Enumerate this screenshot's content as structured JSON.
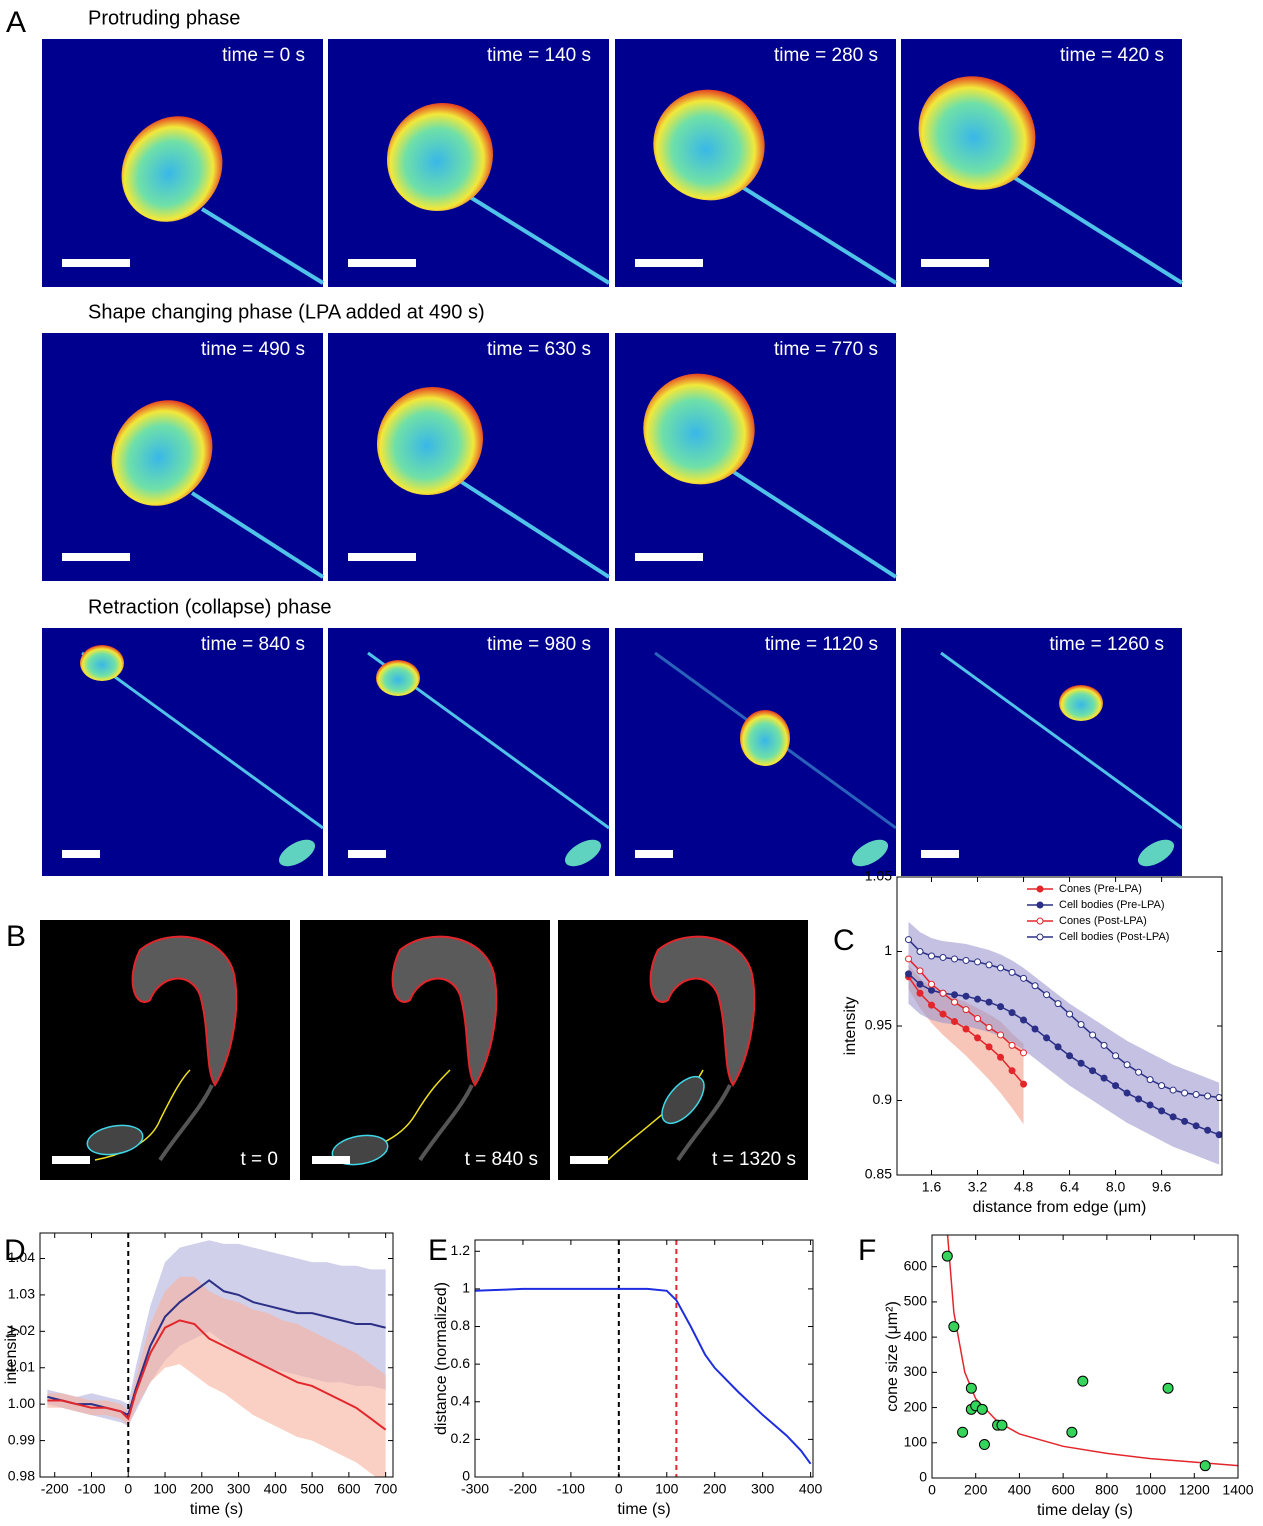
{
  "panel_a": {
    "label": "A",
    "rows": [
      {
        "title": "Protruding phase",
        "frames": [
          "time = 0 s",
          "time = 140 s",
          "time = 280 s",
          "time = 420 s"
        ]
      },
      {
        "title": "Shape changing phase (LPA added at 490 s)",
        "frames": [
          "time = 490 s",
          "time = 630 s",
          "time = 770 s"
        ]
      },
      {
        "title": "Retraction (collapse) phase",
        "frames": [
          "time = 840 s",
          "time = 980 s",
          "time = 1120 s",
          "time = 1260 s"
        ]
      }
    ]
  },
  "panel_b": {
    "label": "B",
    "frames": [
      "t = 0",
      "t = 840 s",
      "t = 1320 s"
    ]
  },
  "chart_data": [
    {
      "type": "line",
      "panel_label": "C",
      "xlabel": "distance from edge (μm)",
      "ylabel": "intensity",
      "xlim": [
        0.4,
        11.7
      ],
      "ylim": [
        0.85,
        1.05
      ],
      "xticks": [
        1.6,
        3.2,
        4.8,
        6.4,
        {
          "value": 8,
          "label": "8.0"
        },
        9.6
      ],
      "yticks": [
        0.85,
        0.9,
        0.95,
        1,
        1.05
      ],
      "legend": "upper right",
      "series": [
        {
          "name": "Cones (Pre-LPA)",
          "color": "#e3262b",
          "marker": "filled",
          "band_color": "#f4a08a",
          "x": [
            0.8,
            1.2,
            1.6,
            2,
            2.4,
            2.8,
            3.2,
            3.6,
            4,
            4.4,
            4.8
          ],
          "values": [
            0.983,
            0.972,
            0.964,
            0.958,
            0.953,
            0.948,
            0.942,
            0.936,
            0.929,
            0.92,
            0.911
          ],
          "lower": [
            0.975,
            0.962,
            0.952,
            0.944,
            0.937,
            0.93,
            0.922,
            0.914,
            0.905,
            0.895,
            0.884
          ],
          "upper": [
            0.991,
            0.982,
            0.976,
            0.972,
            0.969,
            0.966,
            0.962,
            0.958,
            0.953,
            0.945,
            0.938
          ]
        },
        {
          "name": "Cell bodies (Pre-LPA)",
          "color": "#2b2f86",
          "marker": "filled",
          "band_color": "#9c98cf",
          "x": [
            0.8,
            1.2,
            1.6,
            2,
            2.4,
            2.8,
            3.2,
            3.6,
            4,
            4.4,
            4.8,
            5.2,
            5.6,
            6,
            6.4,
            6.8,
            7.2,
            7.6,
            8,
            8.4,
            8.8,
            9.2,
            9.6,
            10,
            10.4,
            10.8,
            11.2,
            11.6
          ],
          "values": [
            0.985,
            0.978,
            0.974,
            0.972,
            0.971,
            0.97,
            0.968,
            0.966,
            0.963,
            0.959,
            0.954,
            0.948,
            0.942,
            0.936,
            0.93,
            0.925,
            0.92,
            0.915,
            0.91,
            0.905,
            0.901,
            0.897,
            0.893,
            0.889,
            0.886,
            0.883,
            0.88,
            0.877
          ],
          "lower": [
            0.965,
            0.958,
            0.954,
            0.952,
            0.951,
            0.95,
            0.948,
            0.946,
            0.943,
            0.939,
            0.934,
            0.928,
            0.922,
            0.916,
            0.91,
            0.905,
            0.9,
            0.895,
            0.89,
            0.885,
            0.881,
            0.877,
            0.873,
            0.869,
            0.866,
            0.863,
            0.86,
            0.857
          ],
          "upper": [
            1.02,
            1.013,
            1.009,
            1.007,
            1.006,
            1.005,
            1.003,
            1.001,
            0.998,
            0.994,
            0.989,
            0.983,
            0.977,
            0.971,
            0.965,
            0.96,
            0.955,
            0.95,
            0.945,
            0.94,
            0.936,
            0.932,
            0.928,
            0.924,
            0.921,
            0.918,
            0.915,
            0.912
          ]
        },
        {
          "name": "Cones (Post-LPA)",
          "color": "#e3262b",
          "marker": "open",
          "x": [
            0.8,
            1.2,
            1.6,
            2,
            2.4,
            2.8,
            3.2,
            3.6,
            4,
            4.4,
            4.8
          ],
          "values": [
            0.995,
            0.987,
            0.978,
            0.972,
            0.966,
            0.961,
            0.955,
            0.949,
            0.944,
            0.937,
            0.932
          ]
        },
        {
          "name": "Cell bodies (Post-LPA)",
          "color": "#2b2f86",
          "marker": "open",
          "x": [
            0.8,
            1.2,
            1.6,
            2,
            2.4,
            2.8,
            3.2,
            3.6,
            4,
            4.4,
            4.8,
            5.2,
            5.6,
            6,
            6.4,
            6.8,
            7.2,
            7.6,
            8,
            8.4,
            8.8,
            9.2,
            9.6,
            10,
            10.4,
            10.8,
            11.2,
            11.6
          ],
          "values": [
            1.008,
            1.0,
            0.997,
            0.996,
            0.995,
            0.994,
            0.993,
            0.991,
            0.989,
            0.986,
            0.982,
            0.977,
            0.971,
            0.965,
            0.958,
            0.951,
            0.944,
            0.937,
            0.93,
            0.924,
            0.919,
            0.914,
            0.91,
            0.907,
            0.905,
            0.904,
            0.903,
            0.902
          ]
        }
      ]
    },
    {
      "type": "line",
      "panel_label": "D",
      "xlabel": "time (s)",
      "ylabel": "intensity",
      "xlim": [
        -240,
        720
      ],
      "ylim": [
        0.98,
        1.047
      ],
      "xticks": [
        -200,
        -100,
        0,
        100,
        200,
        300,
        400,
        500,
        600,
        700
      ],
      "yticks": [
        0.98,
        0.99,
        {
          "value": 1,
          "label": "1.00"
        },
        1.01,
        1.02,
        1.03,
        1.04
      ],
      "x": [
        -220,
        -180,
        -140,
        -100,
        -60,
        -20,
        0,
        20,
        60,
        100,
        140,
        180,
        220,
        260,
        300,
        340,
        380,
        420,
        460,
        500,
        540,
        580,
        620,
        660,
        700
      ],
      "vlines": [
        {
          "x": 0,
          "color": "#000000"
        }
      ],
      "series": [
        {
          "color": "#2b2f86",
          "marker": "none",
          "band_color": "#b3b0dc",
          "values": [
            1.002,
            1.001,
            1.0,
            1.0,
            0.999,
            0.998,
            0.997,
            1.004,
            1.016,
            1.024,
            1.028,
            1.031,
            1.034,
            1.031,
            1.03,
            1.028,
            1.027,
            1.026,
            1.025,
            1.025,
            1.024,
            1.023,
            1.022,
            1.022,
            1.021
          ],
          "lower": [
            1.0,
            0.999,
            0.998,
            0.997,
            0.996,
            0.995,
            0.994,
            0.998,
            1.006,
            1.012,
            1.016,
            1.018,
            1.02,
            1.017,
            1.014,
            1.012,
            1.01,
            1.009,
            1.008,
            1.007,
            1.006,
            1.006,
            1.005,
            1.005,
            1.004
          ],
          "upper": [
            1.004,
            1.003,
            1.002,
            1.003,
            1.002,
            1.001,
            1.0,
            1.01,
            1.027,
            1.039,
            1.043,
            1.044,
            1.045,
            1.044,
            1.044,
            1.043,
            1.042,
            1.041,
            1.04,
            1.039,
            1.039,
            1.038,
            1.038,
            1.037,
            1.037
          ]
        },
        {
          "color": "#e3262b",
          "marker": "none",
          "band_color": "#f7b09c",
          "values": [
            1.001,
            1.001,
            1.0,
            0.999,
            0.999,
            0.998,
            0.996,
            1.003,
            1.014,
            1.021,
            1.023,
            1.022,
            1.018,
            1.016,
            1.014,
            1.012,
            1.01,
            1.008,
            1.006,
            1.005,
            1.003,
            1.001,
            0.999,
            0.996,
            0.993
          ],
          "lower": [
            0.999,
            0.999,
            0.998,
            0.997,
            0.997,
            0.996,
            0.994,
            0.999,
            1.006,
            1.01,
            1.011,
            1.008,
            1.005,
            1.003,
            1.0,
            0.997,
            0.995,
            0.993,
            0.991,
            0.99,
            0.988,
            0.986,
            0.984,
            0.981,
            0.978
          ],
          "upper": [
            1.003,
            1.003,
            1.002,
            1.001,
            1.001,
            1.0,
            0.998,
            1.007,
            1.022,
            1.031,
            1.035,
            1.035,
            1.031,
            1.029,
            1.028,
            1.026,
            1.025,
            1.023,
            1.022,
            1.02,
            1.018,
            1.016,
            1.014,
            1.011,
            1.008
          ]
        }
      ]
    },
    {
      "type": "line",
      "panel_label": "E",
      "xlabel": "time (s)",
      "ylabel": "distance (normalized)",
      "xlim": [
        -300,
        405
      ],
      "ylim": [
        0,
        1.26
      ],
      "xticks": [
        -300,
        -200,
        -100,
        0,
        100,
        200,
        300,
        400
      ],
      "yticks": [
        0,
        0.2,
        0.4,
        0.6,
        0.8,
        1,
        1.2
      ],
      "x": [
        -300,
        -200,
        -100,
        0,
        60,
        100,
        120,
        150,
        180,
        200,
        250,
        300,
        350,
        380,
        400
      ],
      "vlines": [
        {
          "x": 0,
          "color": "#000000"
        },
        {
          "x": 120,
          "color": "#e3262b"
        }
      ],
      "series": [
        {
          "color": "#1f2de0",
          "marker": "none",
          "values": [
            0.99,
            1.0,
            1.0,
            1.0,
            1.0,
            0.99,
            0.94,
            0.8,
            0.65,
            0.58,
            0.45,
            0.33,
            0.22,
            0.14,
            0.07
          ]
        }
      ]
    },
    {
      "type": "scatter",
      "panel_label": "F",
      "xlabel": "time delay (s)",
      "ylabel": "cone size (μm²)",
      "xlim": [
        0,
        1400
      ],
      "ylim": [
        0,
        690
      ],
      "xticks": [
        0,
        200,
        400,
        600,
        800,
        1000,
        1200,
        1400
      ],
      "yticks": [
        0,
        100,
        200,
        300,
        400,
        500,
        600
      ],
      "series": [
        {
          "color": "#e3262b",
          "marker": "none",
          "x": [
            70,
            100,
            150,
            200,
            300,
            400,
            600,
            800,
            1000,
            1200,
            1400
          ],
          "values": [
            700,
            470,
            300,
            225,
            160,
            125,
            90,
            70,
            55,
            45,
            35
          ]
        },
        {
          "color": "#35d45a",
          "marker": "filled",
          "mode": "markers",
          "x": [
            70,
            100,
            140,
            180,
            180,
            200,
            230,
            240,
            300,
            320,
            640,
            690,
            1080,
            1250
          ],
          "values": [
            630,
            430,
            130,
            255,
            195,
            205,
            195,
            95,
            150,
            150,
            130,
            275,
            255,
            35
          ]
        }
      ]
    }
  ]
}
